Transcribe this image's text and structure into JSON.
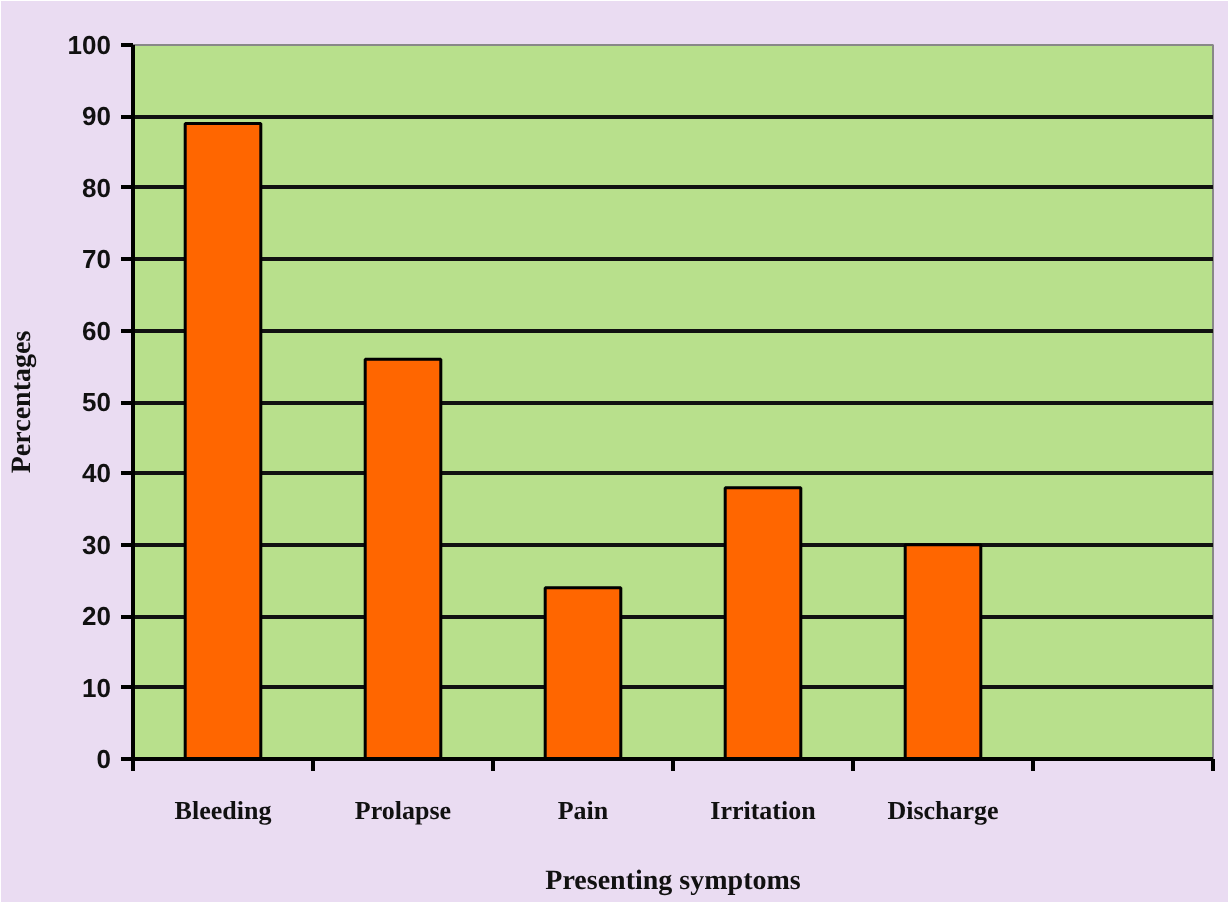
{
  "chart_data": {
    "type": "bar",
    "xlabel": "Presenting symptoms",
    "ylabel": "Percentages",
    "categories": [
      "Bleeding",
      "Prolapse",
      "Pain",
      "Irritation",
      "Discharge",
      null
    ],
    "values": [
      89,
      56,
      24,
      38,
      30,
      null
    ],
    "color": "#ff6600",
    "ylim": [
      0,
      100
    ],
    "yticks": [
      0,
      10,
      20,
      30,
      40,
      50,
      60,
      70,
      80,
      90,
      100
    ],
    "grid": "y"
  }
}
